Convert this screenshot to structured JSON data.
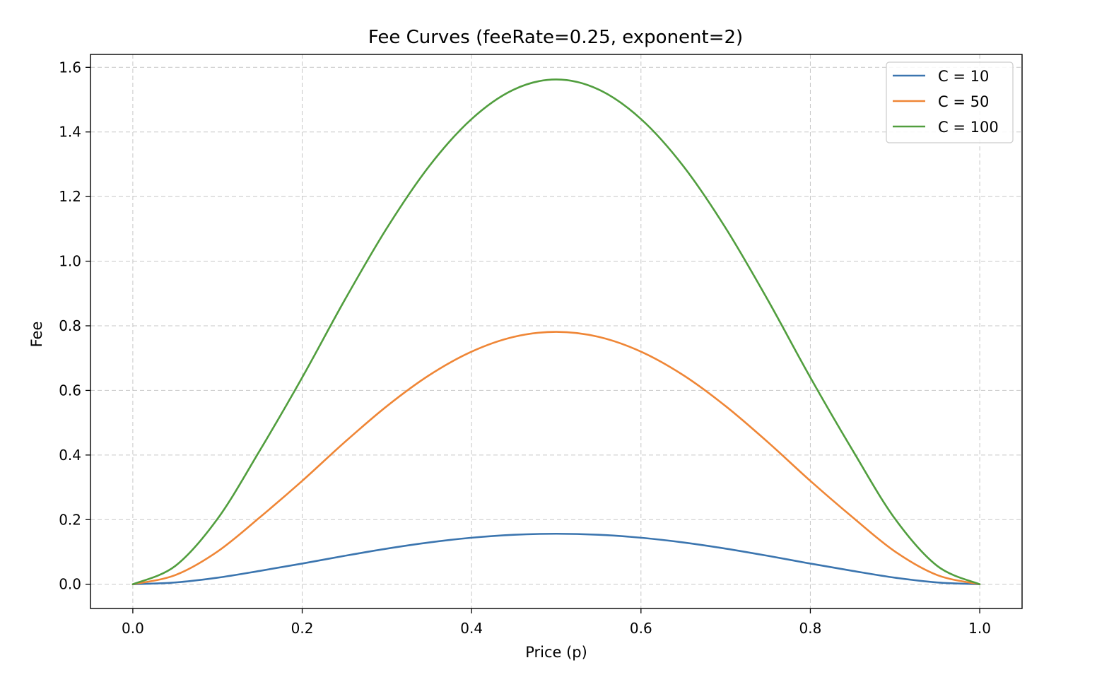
{
  "chart_data": {
    "type": "line",
    "title": "Fee Curves (feeRate=0.25, exponent=2)",
    "xlabel": "Price (p)",
    "ylabel": "Fee",
    "xlim": [
      -0.05,
      1.05
    ],
    "ylim": [
      -0.075,
      1.64
    ],
    "xticks": [
      0.0,
      0.2,
      0.4,
      0.6,
      0.8,
      1.0
    ],
    "xtick_labels": [
      "0.0",
      "0.2",
      "0.4",
      "0.6",
      "0.8",
      "1.0"
    ],
    "yticks": [
      0.0,
      0.2,
      0.4,
      0.6,
      0.8,
      1.0,
      1.2,
      1.4,
      1.6
    ],
    "ytick_labels": [
      "0.0",
      "0.2",
      "0.4",
      "0.6",
      "0.8",
      "1.0",
      "1.2",
      "1.4",
      "1.6"
    ],
    "grid": true,
    "legend_position": "top-right",
    "x": [
      0.0,
      0.05,
      0.1,
      0.15,
      0.2,
      0.25,
      0.3,
      0.35,
      0.4,
      0.45,
      0.5,
      0.55,
      0.6,
      0.65,
      0.7,
      0.75,
      0.8,
      0.85,
      0.9,
      0.95,
      1.0
    ],
    "series": [
      {
        "name": "C = 10",
        "color": "#3b75af",
        "values": [
          0.0,
          0.0056,
          0.0203,
          0.0414,
          0.064,
          0.0879,
          0.1103,
          0.1294,
          0.144,
          0.1532,
          0.1563,
          0.1532,
          0.144,
          0.1294,
          0.1103,
          0.0879,
          0.064,
          0.0414,
          0.0203,
          0.0056,
          0.0
        ]
      },
      {
        "name": "C = 50",
        "color": "#ef8636",
        "values": [
          0.0,
          0.0282,
          0.1013,
          0.2072,
          0.32,
          0.4395,
          0.5513,
          0.6471,
          0.72,
          0.7658,
          0.7813,
          0.7658,
          0.72,
          0.6471,
          0.5513,
          0.4395,
          0.32,
          0.2072,
          0.1013,
          0.0282,
          0.0
        ]
      },
      {
        "name": "C = 100",
        "color": "#519e3e",
        "values": [
          0.0,
          0.0564,
          0.2025,
          0.4143,
          0.64,
          0.8789,
          1.1025,
          1.2943,
          1.44,
          1.5314,
          1.5625,
          1.5314,
          1.44,
          1.2943,
          1.1025,
          0.8789,
          0.64,
          0.4143,
          0.2025,
          0.0564,
          0.0
        ]
      }
    ]
  }
}
